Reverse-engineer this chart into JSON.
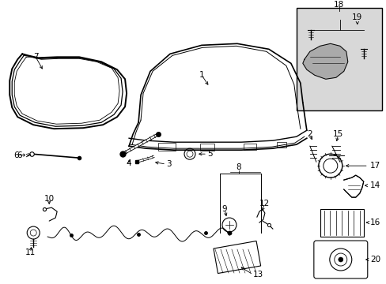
{
  "bg_color": "#ffffff",
  "line_color": "#000000",
  "fig_width": 4.89,
  "fig_height": 3.6,
  "dpi": 100,
  "font_size": 7.5,
  "inset_bg": "#d8d8d8"
}
